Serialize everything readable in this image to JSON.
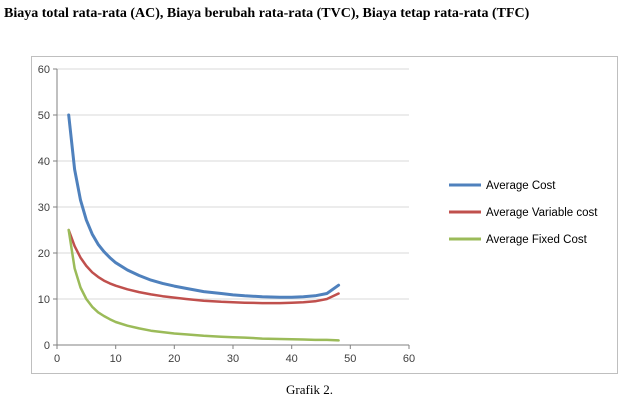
{
  "page": {
    "title": "Biaya total rata-rata (AC), Biaya berubah rata-rata (TVC), Biaya tetap rata-rata (TFC)",
    "caption": "Grafik 2."
  },
  "chart_data": {
    "type": "line",
    "title": "Biaya total rata-rata (AC), Biaya berubah rata-rata (TVC), Biaya tetap rata-rata (TFC)",
    "xlabel": "",
    "ylabel": "",
    "xlim": [
      0,
      60
    ],
    "ylim": [
      0,
      60
    ],
    "xticks": [
      0,
      10,
      20,
      30,
      40,
      50,
      60
    ],
    "yticks": [
      0,
      10,
      20,
      30,
      40,
      50,
      60
    ],
    "grid": "horizontal",
    "legend_position": "right",
    "axis_color": "#808080",
    "grid_color": "#d9d9d9",
    "x": [
      2,
      3,
      4,
      5,
      6,
      7,
      8,
      9,
      10,
      12,
      14,
      16,
      18,
      20,
      22,
      25,
      28,
      30,
      32,
      35,
      38,
      40,
      42,
      44,
      46,
      48
    ],
    "series": [
      {
        "name": "Average Cost",
        "color": "#4f81bd",
        "width": 3,
        "values": [
          50,
          38.2,
          31.5,
          27.2,
          24.1,
          21.9,
          20.3,
          19,
          17.9,
          16.3,
          15.1,
          14.1,
          13.4,
          12.8,
          12.3,
          11.6,
          11.2,
          10.9,
          10.7,
          10.5,
          10.4,
          10.4,
          10.5,
          10.7,
          11.2,
          13
        ]
      },
      {
        "name": "Average Variable cost",
        "color": "#c0504d",
        "width": 2.5,
        "values": [
          25,
          21.5,
          19,
          17.2,
          15.8,
          14.8,
          14,
          13.4,
          12.9,
          12.1,
          11.5,
          11,
          10.6,
          10.3,
          10,
          9.6,
          9.4,
          9.3,
          9.2,
          9.1,
          9.1,
          9.2,
          9.3,
          9.5,
          10,
          11.2
        ]
      },
      {
        "name": "Average Fixed Cost",
        "color": "#9bbb59",
        "width": 2.5,
        "values": [
          25,
          16.7,
          12.5,
          10,
          8.3,
          7.1,
          6.3,
          5.6,
          5,
          4.2,
          3.6,
          3.1,
          2.8,
          2.5,
          2.3,
          2,
          1.8,
          1.7,
          1.6,
          1.4,
          1.3,
          1.25,
          1.2,
          1.1,
          1.1,
          1
        ]
      }
    ]
  }
}
